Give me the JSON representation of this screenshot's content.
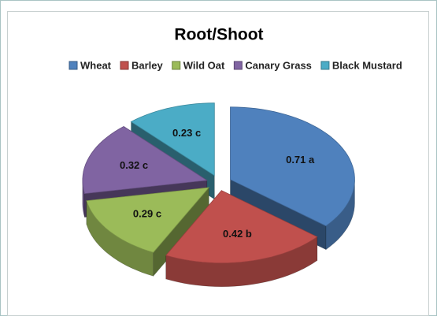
{
  "chart_data": {
    "type": "pie",
    "title": "Root/Shoot",
    "categories": [
      "Wheat",
      "Barley",
      "Wild Oat",
      "Canary Grass",
      "Black Mustard"
    ],
    "values": [
      0.71,
      0.42,
      0.29,
      0.32,
      0.23
    ],
    "value_labels": [
      "0.71 a",
      "0.42 b",
      "0.29 c",
      "0.32 c",
      "0.23 c"
    ],
    "colors": [
      "#4f81bd",
      "#c0504d",
      "#9bbb59",
      "#8064a2",
      "#4bacc6"
    ],
    "legend": "top"
  }
}
